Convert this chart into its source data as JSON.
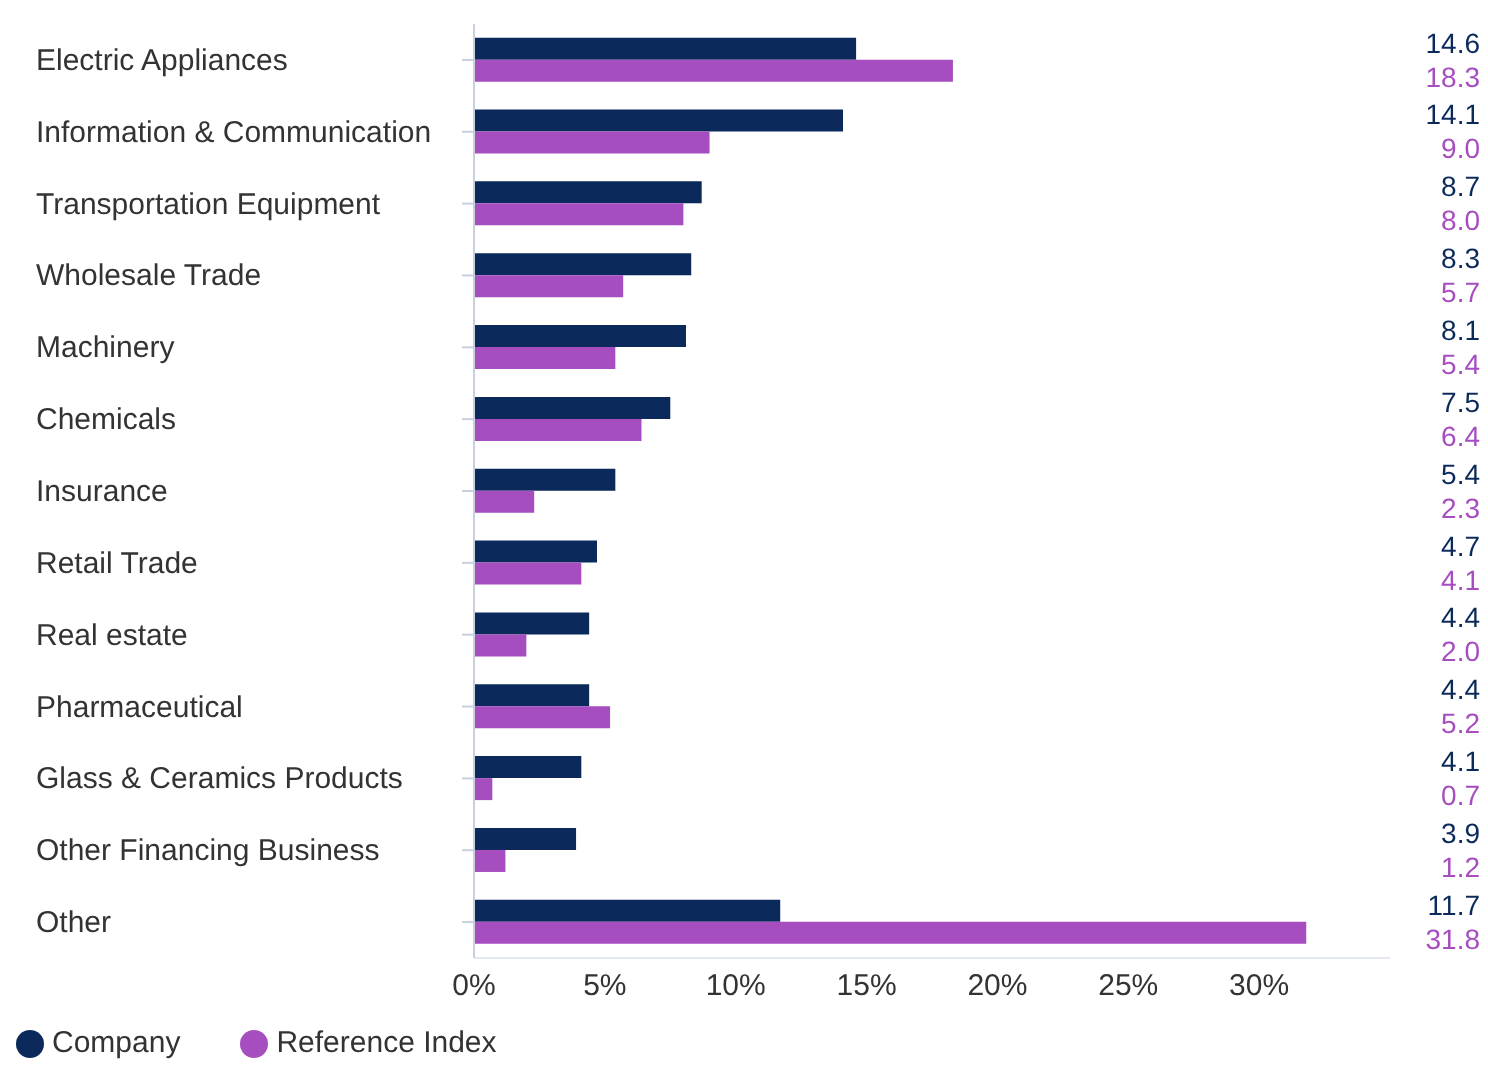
{
  "chart_data": {
    "type": "bar",
    "orientation": "horizontal",
    "categories": [
      "Electric Appliances",
      "Information & Communication",
      "Transportation Equipment",
      "Wholesale Trade",
      "Machinery",
      "Chemicals",
      "Insurance",
      "Retail Trade",
      "Real estate",
      "Pharmaceutical",
      "Glass & Ceramics Products",
      "Other Financing Business",
      "Other"
    ],
    "series": [
      {
        "name": "Company",
        "color": "#0b2a5b",
        "values": [
          14.6,
          14.1,
          8.7,
          8.3,
          8.1,
          7.5,
          5.4,
          4.7,
          4.4,
          4.4,
          4.1,
          3.9,
          11.7
        ]
      },
      {
        "name": "Reference Index",
        "color": "#a64dbf",
        "values": [
          18.3,
          9.0,
          8.0,
          5.7,
          5.4,
          6.4,
          2.3,
          4.1,
          2.0,
          5.2,
          0.7,
          1.2,
          31.8
        ]
      }
    ],
    "value_labels": [
      [
        "14.6",
        "14.1",
        "8.7",
        "8.3",
        "8.1",
        "7.5",
        "5.4",
        "4.7",
        "4.4",
        "4.4",
        "4.1",
        "3.9",
        "11.7"
      ],
      [
        "18.3",
        "9.0",
        "8.0",
        "5.7",
        "5.4",
        "6.4",
        "2.3",
        "4.1",
        "2.0",
        "5.2",
        "0.7",
        "1.2",
        "31.8"
      ]
    ],
    "xlim": [
      0,
      35
    ],
    "xticks": [
      {
        "value": 0,
        "label": "0%"
      },
      {
        "value": 5,
        "label": "5%"
      },
      {
        "value": 10,
        "label": "10%"
      },
      {
        "value": 15,
        "label": "15%"
      },
      {
        "value": 20,
        "label": "20%"
      },
      {
        "value": 25,
        "label": "25%"
      },
      {
        "value": 30,
        "label": "30%"
      }
    ],
    "legend": "bottom left"
  }
}
